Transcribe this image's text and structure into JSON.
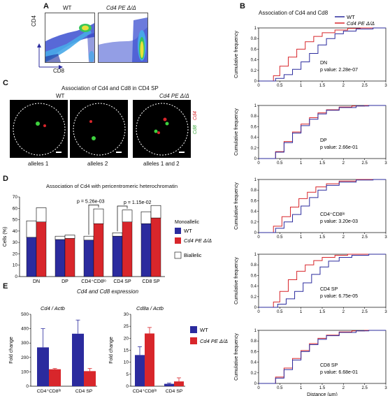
{
  "panels": {
    "A": {
      "letter": "A",
      "wt_label": "WT",
      "mut_label": "Cd4 PE Δ/Δ",
      "y_axis": "CD4",
      "x_axis": "CD8"
    },
    "B": {
      "letter": "B",
      "title": "Association of Cd4 and Cd8",
      "legend": [
        {
          "name": "WT",
          "color": "#2b2b9e"
        },
        {
          "name": "Cd4 PE Δ/Δ",
          "color": "#d8262b"
        }
      ],
      "ylabel": "Cumulative frequency",
      "xlabel": "Distance (μm)",
      "xticks": [
        "0",
        "0.5",
        "1",
        "1.5",
        "2",
        "2.5",
        "3"
      ],
      "yticks": [
        "0",
        "0.2",
        "0.4",
        "0.6",
        "0.8",
        "1"
      ],
      "subplots": [
        {
          "name": "DN",
          "pvalue": "p value: 2.28e-07"
        },
        {
          "name": "DP",
          "pvalue": "p value: 2.66e-01"
        },
        {
          "name": "CD4⁺CD8ˡᵒ",
          "pvalue": "p value: 3.20e-03"
        },
        {
          "name": "CD4 SP",
          "pvalue": "p value: 6.75e-05"
        },
        {
          "name": "CD8 SP",
          "pvalue": "p value: 6.68e-01"
        }
      ]
    },
    "C": {
      "letter": "C",
      "title": "Association of Cd4 and Cd8 in CD4 SP",
      "wt_label": "WT",
      "mut_label": "Cd4 PE Δ/Δ",
      "captions": [
        "alleles 1",
        "alleles 2",
        "alleles 1 and 2"
      ],
      "side_cd4": "Cd4",
      "side_cd8": "Cd8"
    },
    "D": {
      "letter": "D",
      "title": "Association of Cd4 with pericentromeric heterochromatin",
      "ylabel": "Cells (%)",
      "yticks": [
        "0",
        "10",
        "20",
        "30",
        "40",
        "50",
        "60",
        "70"
      ],
      "legend_monoallelic": "Monoallelic",
      "legend_wt": "WT",
      "legend_mut": "Cd4 PE Δ/Δ",
      "legend_biallelic": "Biallelic",
      "p1": "p = 5.26e-03",
      "p2": "p = 1.15e-02"
    },
    "E": {
      "letter": "E",
      "title": "Cd4 and Cd8 expression",
      "left_title": "Cd4 / Actb",
      "right_title": "Cd8a / Actb",
      "ylabel": "Fold change",
      "left_yticks": [
        "0",
        "100",
        "200",
        "300",
        "400",
        "500"
      ],
      "right_yticks": [
        "0",
        "5",
        "10",
        "15",
        "20",
        "25",
        "30"
      ],
      "legend_wt": "WT",
      "legend_mut": "Cd4 PE Δ/Δ"
    }
  },
  "chart_data": [
    {
      "type": "bar",
      "title": "Association of Cd4 with pericentromeric heterochromatin",
      "ylabel": "Cells (%)",
      "ylim": [
        0,
        70
      ],
      "categories": [
        "DN",
        "DP",
        "CD4⁺CD8ˡᵒ",
        "CD4 SP",
        "CD8 SP"
      ],
      "series": [
        {
          "name": "WT",
          "values": [
            34.5,
            32.5,
            32,
            35.5,
            46.5
          ],
          "biallelic_total": [
            49,
            35.5,
            35.5,
            38.5,
            57
          ],
          "color": "#2b2b9e"
        },
        {
          "name": "Cd4 PE Δ/Δ",
          "values": [
            48,
            33.5,
            46.5,
            48,
            51.5
          ],
          "biallelic_total": [
            60.5,
            36.5,
            59.5,
            58.5,
            62.5
          ],
          "color": "#d8262b"
        }
      ]
    },
    {
      "type": "bar",
      "title": "Cd4 / Actb",
      "ylabel": "Fold change",
      "ylim": [
        0,
        500
      ],
      "categories": [
        "CD4⁺CD8ˡᵒ",
        "CD4 SP"
      ],
      "series": [
        {
          "name": "WT",
          "values": [
            270,
            365
          ],
          "error": [
            130,
            95
          ]
        },
        {
          "name": "Cd4 PE Δ/Δ",
          "values": [
            118,
            105
          ],
          "error": [
            5,
            18
          ]
        }
      ]
    },
    {
      "type": "bar",
      "title": "Cd8a / Actb",
      "ylabel": "Fold change",
      "ylim": [
        0,
        30
      ],
      "categories": [
        "CD4⁺CD8ˡᵒ",
        "CD4 SP"
      ],
      "series": [
        {
          "name": "WT",
          "values": [
            13,
            1
          ],
          "error": [
            3.5,
            0.3
          ]
        },
        {
          "name": "Cd4 PE Δ/Δ",
          "values": [
            22,
            2
          ],
          "error": [
            2.5,
            1.5
          ]
        }
      ]
    },
    {
      "type": "line",
      "title": "Association of Cd4 and Cd8",
      "xlabel": "Distance (μm)",
      "ylabel": "Cumulative frequency",
      "xlim": [
        0,
        3
      ],
      "ylim": [
        0,
        1
      ],
      "subplots": [
        {
          "name": "DN",
          "series": [
            {
              "name": "WT",
              "points": [
                [
                  0.2,
                  0
                ],
                [
                  0.4,
                  0.05
                ],
                [
                  0.6,
                  0.12
                ],
                [
                  0.8,
                  0.22
                ],
                [
                  1.0,
                  0.36
                ],
                [
                  1.2,
                  0.52
                ],
                [
                  1.4,
                  0.68
                ],
                [
                  1.6,
                  0.8
                ],
                [
                  1.8,
                  0.89
                ],
                [
                  2.0,
                  0.94
                ],
                [
                  2.3,
                  0.98
                ],
                [
                  2.7,
                  1
                ]
              ]
            },
            {
              "name": "Cd4 PE Δ/Δ",
              "points": [
                [
                  0.2,
                  0
                ],
                [
                  0.35,
                  0.1
                ],
                [
                  0.5,
                  0.28
                ],
                [
                  0.7,
                  0.45
                ],
                [
                  0.9,
                  0.6
                ],
                [
                  1.1,
                  0.74
                ],
                [
                  1.3,
                  0.84
                ],
                [
                  1.5,
                  0.91
                ],
                [
                  1.8,
                  0.96
                ],
                [
                  2.1,
                  0.99
                ],
                [
                  2.4,
                  1
                ]
              ]
            }
          ]
        },
        {
          "name": "DP",
          "series": [
            {
              "name": "WT",
              "points": [
                [
                  0.2,
                  0
                ],
                [
                  0.4,
                  0.12
                ],
                [
                  0.6,
                  0.3
                ],
                [
                  0.8,
                  0.48
                ],
                [
                  1.0,
                  0.62
                ],
                [
                  1.2,
                  0.74
                ],
                [
                  1.4,
                  0.84
                ],
                [
                  1.6,
                  0.91
                ],
                [
                  1.9,
                  0.96
                ],
                [
                  2.3,
                  0.99
                ],
                [
                  2.6,
                  1
                ]
              ]
            },
            {
              "name": "Cd4 PE Δ/Δ",
              "points": [
                [
                  0.2,
                  0
                ],
                [
                  0.4,
                  0.13
                ],
                [
                  0.6,
                  0.32
                ],
                [
                  0.8,
                  0.5
                ],
                [
                  1.0,
                  0.65
                ],
                [
                  1.2,
                  0.77
                ],
                [
                  1.4,
                  0.86
                ],
                [
                  1.6,
                  0.92
                ],
                [
                  1.9,
                  0.97
                ],
                [
                  2.2,
                  0.99
                ],
                [
                  2.5,
                  1
                ]
              ]
            }
          ]
        },
        {
          "name": "CD4⁺CD8ˡᵒ",
          "series": [
            {
              "name": "WT",
              "points": [
                [
                  0.15,
                  0
                ],
                [
                  0.4,
                  0.08
                ],
                [
                  0.6,
                  0.2
                ],
                [
                  0.8,
                  0.34
                ],
                [
                  1.0,
                  0.5
                ],
                [
                  1.2,
                  0.66
                ],
                [
                  1.4,
                  0.8
                ],
                [
                  1.6,
                  0.89
                ],
                [
                  1.9,
                  0.95
                ],
                [
                  2.3,
                  0.99
                ],
                [
                  2.7,
                  1
                ]
              ]
            },
            {
              "name": "Cd4 PE Δ/Δ",
              "points": [
                [
                  0.15,
                  0
                ],
                [
                  0.35,
                  0.12
                ],
                [
                  0.55,
                  0.3
                ],
                [
                  0.75,
                  0.48
                ],
                [
                  0.95,
                  0.64
                ],
                [
                  1.15,
                  0.76
                ],
                [
                  1.35,
                  0.86
                ],
                [
                  1.6,
                  0.92
                ],
                [
                  1.9,
                  0.97
                ],
                [
                  2.3,
                  1
                ]
              ]
            }
          ]
        },
        {
          "name": "CD4 SP",
          "series": [
            {
              "name": "WT",
              "points": [
                [
                  0.2,
                  0
                ],
                [
                  0.45,
                  0.06
                ],
                [
                  0.65,
                  0.16
                ],
                [
                  0.85,
                  0.3
                ],
                [
                  1.05,
                  0.46
                ],
                [
                  1.25,
                  0.62
                ],
                [
                  1.45,
                  0.76
                ],
                [
                  1.65,
                  0.87
                ],
                [
                  1.9,
                  0.94
                ],
                [
                  2.2,
                  0.98
                ],
                [
                  2.6,
                  1
                ]
              ]
            },
            {
              "name": "Cd4 PE Δ/Δ",
              "points": [
                [
                  0.2,
                  0
                ],
                [
                  0.35,
                  0.1
                ],
                [
                  0.5,
                  0.3
                ],
                [
                  0.7,
                  0.52
                ],
                [
                  0.9,
                  0.68
                ],
                [
                  1.1,
                  0.8
                ],
                [
                  1.3,
                  0.88
                ],
                [
                  1.5,
                  0.94
                ],
                [
                  1.8,
                  0.98
                ],
                [
                  2.1,
                  1
                ]
              ]
            }
          ]
        },
        {
          "name": "CD8 SP",
          "series": [
            {
              "name": "WT",
              "points": [
                [
                  0.2,
                  0
                ],
                [
                  0.4,
                  0.1
                ],
                [
                  0.6,
                  0.26
                ],
                [
                  0.8,
                  0.44
                ],
                [
                  1.0,
                  0.6
                ],
                [
                  1.2,
                  0.73
                ],
                [
                  1.4,
                  0.83
                ],
                [
                  1.6,
                  0.9
                ],
                [
                  1.9,
                  0.96
                ],
                [
                  2.3,
                  0.99
                ],
                [
                  2.6,
                  1
                ]
              ]
            },
            {
              "name": "Cd4 PE Δ/Δ",
              "points": [
                [
                  0.2,
                  0
                ],
                [
                  0.4,
                  0.12
                ],
                [
                  0.6,
                  0.29
                ],
                [
                  0.8,
                  0.47
                ],
                [
                  1.0,
                  0.62
                ],
                [
                  1.2,
                  0.75
                ],
                [
                  1.4,
                  0.85
                ],
                [
                  1.6,
                  0.91
                ],
                [
                  1.9,
                  0.97
                ],
                [
                  2.2,
                  0.99
                ],
                [
                  2.5,
                  1
                ]
              ]
            }
          ]
        }
      ]
    }
  ]
}
